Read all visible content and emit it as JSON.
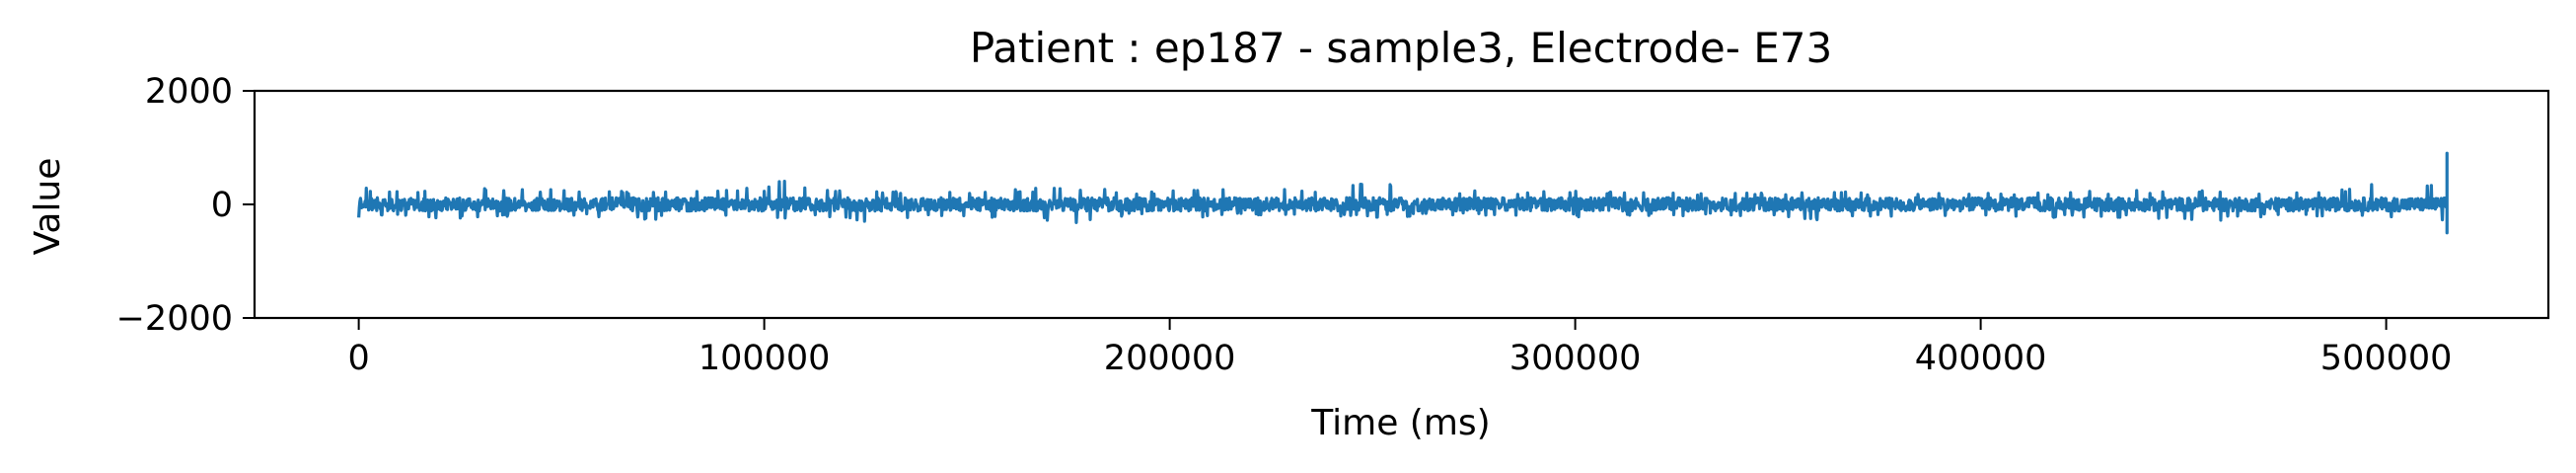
{
  "chart_data": {
    "type": "line",
    "title": "Patient : ep187 - sample3, Electrode- E73",
    "xlabel": "Time (ms)",
    "ylabel": "Value",
    "xlim": [
      -25700,
      540000
    ],
    "ylim": [
      -2000,
      2000
    ],
    "xticks": [
      0,
      100000,
      200000,
      300000,
      400000,
      500000
    ],
    "xtick_labels": [
      "0",
      "100000",
      "200000",
      "300000",
      "400000",
      "500000"
    ],
    "yticks": [
      -2000,
      0,
      2000
    ],
    "ytick_labels": [
      "−2000",
      "0",
      "2000"
    ],
    "grid": false,
    "legend": "none",
    "color": "#1f77b4",
    "series": [
      {
        "x_range": [
          0,
          515000
        ],
        "baseline": 0,
        "typical_amplitude": 130,
        "envelope": [
          {
            "x": 0,
            "min": -250,
            "max": 320
          },
          {
            "x": 10000,
            "min": -200,
            "max": 250
          },
          {
            "x": 20000,
            "min": -250,
            "max": 300
          },
          {
            "x": 30000,
            "min": -230,
            "max": 290
          },
          {
            "x": 40000,
            "min": -200,
            "max": 260
          },
          {
            "x": 50000,
            "min": -220,
            "max": 260
          },
          {
            "x": 60000,
            "min": -220,
            "max": 250
          },
          {
            "x": 65000,
            "min": -300,
            "max": 230
          },
          {
            "x": 80000,
            "min": -230,
            "max": 260
          },
          {
            "x": 90000,
            "min": -220,
            "max": 280
          },
          {
            "x": 100000,
            "min": -250,
            "max": 300
          },
          {
            "x": 104000,
            "min": -250,
            "max": 480
          },
          {
            "x": 115000,
            "min": -230,
            "max": 280
          },
          {
            "x": 125000,
            "min": -330,
            "max": 260
          },
          {
            "x": 140000,
            "min": -220,
            "max": 250
          },
          {
            "x": 155000,
            "min": -230,
            "max": 250
          },
          {
            "x": 177000,
            "min": -330,
            "max": 320
          },
          {
            "x": 190000,
            "min": -200,
            "max": 230
          },
          {
            "x": 205000,
            "min": -230,
            "max": 250
          },
          {
            "x": 220000,
            "min": -200,
            "max": 280
          },
          {
            "x": 235000,
            "min": -220,
            "max": 260
          },
          {
            "x": 250000,
            "min": -230,
            "max": 400
          },
          {
            "x": 265000,
            "min": -200,
            "max": 250
          },
          {
            "x": 285000,
            "min": -200,
            "max": 230
          },
          {
            "x": 300000,
            "min": -220,
            "max": 240
          },
          {
            "x": 320000,
            "min": -200,
            "max": 210
          },
          {
            "x": 340000,
            "min": -200,
            "max": 210
          },
          {
            "x": 360000,
            "min": -280,
            "max": 230
          },
          {
            "x": 380000,
            "min": -200,
            "max": 200
          },
          {
            "x": 400000,
            "min": -200,
            "max": 210
          },
          {
            "x": 420000,
            "min": -230,
            "max": 220
          },
          {
            "x": 440000,
            "min": -230,
            "max": 250
          },
          {
            "x": 455000,
            "min": -300,
            "max": 260
          },
          {
            "x": 470000,
            "min": -220,
            "max": 230
          },
          {
            "x": 490000,
            "min": -220,
            "max": 260
          },
          {
            "x": 500000,
            "min": -220,
            "max": 420
          },
          {
            "x": 510000,
            "min": -250,
            "max": 350
          },
          {
            "x": 514000,
            "min": -300,
            "max": 330
          },
          {
            "x": 515000,
            "min": -500,
            "max": 900
          }
        ]
      }
    ]
  }
}
